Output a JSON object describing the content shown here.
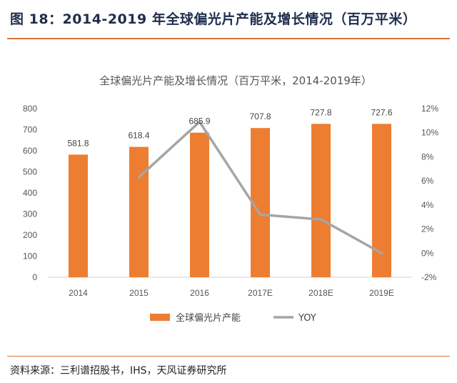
{
  "header": {
    "figure_title": "图 18：2014-2019 年全球偏光片产能及增长情况（百万平米）"
  },
  "footer": {
    "source": "资料来源：三利谱招股书，IHS，天风证券研究所"
  },
  "colors": {
    "bar": "#ed7d31",
    "line": "#a5a5a5",
    "accent_rule": "#d9743a"
  },
  "chart_data": {
    "type": "bar",
    "title": "全球偏光片产能及增长情况（百万平米，2014-2019年）",
    "categories": [
      "2014",
      "2015",
      "2016",
      "2017E",
      "2018E",
      "2019E"
    ],
    "series": [
      {
        "name": "全球偏光片产能",
        "type": "bar",
        "axis": "left",
        "values": [
          581.8,
          618.4,
          685.9,
          707.8,
          727.8,
          727.6
        ],
        "labels": [
          "581.8",
          "618.4",
          "685.9",
          "707.8",
          "727.8",
          "727.6"
        ]
      },
      {
        "name": "YOY",
        "type": "line",
        "axis": "right",
        "values": [
          null,
          6.3,
          10.9,
          3.2,
          2.8,
          0.0
        ]
      }
    ],
    "y_left": {
      "min": 0,
      "max": 800,
      "step": 100,
      "ticks": [
        "0",
        "100",
        "200",
        "300",
        "400",
        "500",
        "600",
        "700",
        "800"
      ]
    },
    "y_right": {
      "min": -2,
      "max": 12,
      "step": 2,
      "ticks": [
        "-2%",
        "0%",
        "2%",
        "4%",
        "6%",
        "8%",
        "10%",
        "12%"
      ]
    },
    "legend_position": "bottom",
    "grid": false
  }
}
